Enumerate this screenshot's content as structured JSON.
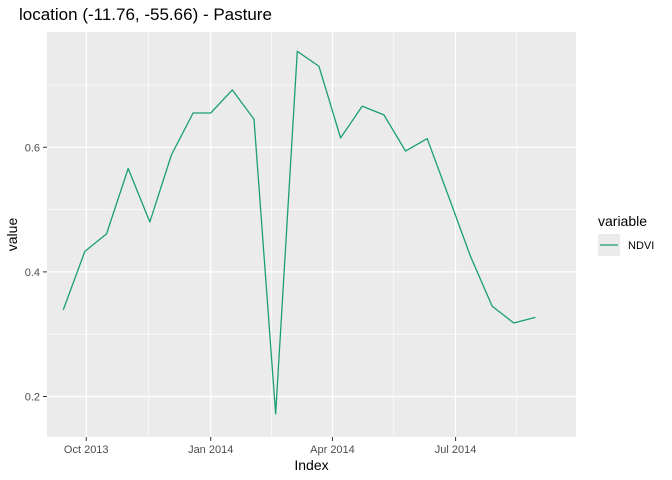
{
  "chart_data": {
    "type": "line",
    "title": "location (-11.76, -55.66) - Pasture",
    "xlabel": "Index",
    "ylabel": "value",
    "x_type": "date",
    "xlim": [
      "2013-09-02",
      "2014-09-28"
    ],
    "ylim": [
      0.135,
      0.785
    ],
    "x_ticks": [
      {
        "value": "2013-10-01",
        "label": "Oct 2013"
      },
      {
        "value": "2014-01-01",
        "label": "Jan 2014"
      },
      {
        "value": "2014-04-01",
        "label": "Apr 2014"
      },
      {
        "value": "2014-07-01",
        "label": "Jul 2014"
      }
    ],
    "y_ticks": [
      {
        "value": 0.2,
        "label": "0.2"
      },
      {
        "value": 0.4,
        "label": "0.4"
      },
      {
        "value": 0.6,
        "label": "0.6"
      }
    ],
    "grid": true,
    "legend": {
      "title": "variable",
      "position": "right",
      "entries": [
        {
          "label": "NDVI",
          "color": "#1b9e77"
        }
      ]
    },
    "series": [
      {
        "name": "NDVI",
        "color": "#1b9e77",
        "x": [
          "2013-09-14",
          "2013-09-30",
          "2013-10-16",
          "2013-11-01",
          "2013-11-17",
          "2013-12-03",
          "2013-12-19",
          "2014-01-01",
          "2014-01-17",
          "2014-02-02",
          "2014-02-18",
          "2014-03-06",
          "2014-03-22",
          "2014-04-07",
          "2014-04-23",
          "2014-05-09",
          "2014-05-25",
          "2014-06-10",
          "2014-06-26",
          "2014-07-12",
          "2014-07-28",
          "2014-08-13",
          "2014-08-29"
        ],
        "y": [
          0.339,
          0.433,
          0.461,
          0.566,
          0.48,
          0.588,
          0.655,
          0.655,
          0.692,
          0.645,
          0.172,
          0.754,
          0.73,
          0.615,
          0.666,
          0.652,
          0.594,
          0.614,
          0.52,
          0.425,
          0.345,
          0.318,
          0.327
        ]
      }
    ]
  }
}
